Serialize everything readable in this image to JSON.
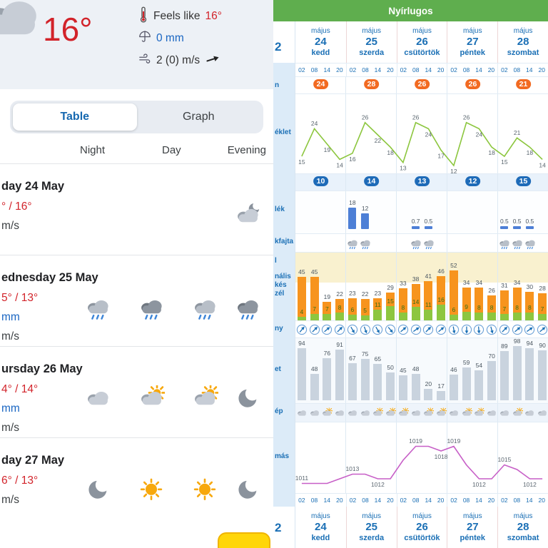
{
  "colors": {
    "header_green": "#5fae4e",
    "accent_blue": "#1a6fb5",
    "temp_red": "#d2232a",
    "precip_blue": "#1a66c2",
    "line_green": "#8cc63e",
    "gust_orange": "#f7941e",
    "avg_green": "#8dc63f",
    "pressure_magenta": "#c75fc7",
    "humidity_gray": "#c9d3de",
    "badge_orange": "#f26a21",
    "badge_blue": "#1e6bb8",
    "highlight_yellow": "#ffd60a"
  },
  "left": {
    "current": {
      "temp": "16°",
      "feels_like_label": "Feels like",
      "feels_like_value": "16°",
      "precip_value": "0 mm",
      "wind_value": "2 (0) m/s"
    },
    "tabs": [
      {
        "label": "Table",
        "active": true
      },
      {
        "label": "Graph",
        "active": false
      }
    ],
    "columns": [
      "Night",
      "Day",
      "Evening"
    ],
    "days": [
      {
        "title": "day 24 May",
        "temp": "° / 16°",
        "precip": "",
        "wind": "m/s",
        "icons": [
          null,
          null,
          null,
          "moon-cloud"
        ]
      },
      {
        "title": "ednesday 25 May",
        "temp": "5° / 13°",
        "precip": "mm",
        "wind": "m/s",
        "icons": [
          "rain",
          "rain-dark",
          "rain",
          "rain-dark"
        ]
      },
      {
        "title": "ursday 26 May",
        "temp": "4° / 14°",
        "precip": "mm",
        "wind": "m/s",
        "icons": [
          "cloud",
          "sun-cloud",
          "sun-cloud",
          "moon"
        ]
      },
      {
        "title": "day 27 May",
        "temp": "6° / 13°",
        "precip": "",
        "wind": "m/s",
        "icons": [
          "moon",
          "sun",
          "sun",
          "moon"
        ]
      }
    ]
  },
  "right": {
    "title": "Nyírlugos",
    "tab_fragment": "2",
    "sidebar_fragments": [
      "2",
      "n",
      "éklet",
      "lék",
      "kfajta",
      "l",
      "nális",
      "kés",
      "zél",
      "ny",
      "et",
      "ép",
      "más",
      "2"
    ],
    "days": [
      {
        "month": "május",
        "num": "24",
        "name": "kedd"
      },
      {
        "month": "május",
        "num": "25",
        "name": "szerda"
      },
      {
        "month": "május",
        "num": "26",
        "name": "csütörtök"
      },
      {
        "month": "május",
        "num": "27",
        "name": "péntek"
      },
      {
        "month": "május",
        "num": "28",
        "name": "szombat"
      }
    ],
    "times": [
      "02",
      "08",
      "14",
      "20"
    ]
  },
  "chart_data": [
    {
      "type": "line",
      "name": "temperature_c",
      "x_slots": "5 days × [02,08,14,20]",
      "values": [
        15,
        24,
        19,
        14,
        16,
        26,
        22,
        18,
        13,
        26,
        24,
        17,
        12,
        26,
        24,
        18,
        15,
        21,
        18,
        14
      ],
      "daily_max_badges": [
        24,
        28,
        26,
        26,
        21
      ],
      "daily_min_badges": [
        10,
        14,
        13,
        12,
        15
      ],
      "line_color": "#8cc63e",
      "ylim": [
        10,
        30
      ]
    },
    {
      "type": "bar",
      "name": "precipitation_mm",
      "values": [
        0,
        0,
        0,
        0,
        18,
        12,
        0,
        0,
        0,
        0.7,
        0.5,
        0,
        0,
        0,
        0,
        0,
        0.5,
        0.5,
        0.5,
        0
      ],
      "bar_color": "#4d7fd6"
    },
    {
      "type": "icons",
      "name": "precipitation_type",
      "slots": [
        {
          "i": 4,
          "icon": "rain"
        },
        {
          "i": 5,
          "icon": "rain"
        },
        {
          "i": 9,
          "icon": "rain"
        },
        {
          "i": 10,
          "icon": "rain"
        },
        {
          "i": 16,
          "icon": "rain"
        },
        {
          "i": 17,
          "icon": "rain"
        },
        {
          "i": 18,
          "icon": "rain"
        }
      ]
    },
    {
      "type": "bar",
      "name": "wind_kmh",
      "series": [
        {
          "name": "gust",
          "color": "#f7941e",
          "values": [
            45,
            45,
            19,
            22,
            23,
            22,
            23,
            29,
            33,
            38,
            41,
            46,
            52,
            34,
            34,
            26,
            31,
            34,
            30,
            28
          ]
        },
        {
          "name": "average",
          "color": "#8dc63f",
          "values": [
            4,
            7,
            7,
            8,
            6,
            5,
            11,
            15,
            8,
            14,
            11,
            16,
            6,
            9,
            8,
            8,
            7,
            8,
            8,
            7
          ]
        }
      ]
    },
    {
      "type": "icons",
      "name": "wind_direction_deg",
      "degrees": [
        40,
        45,
        50,
        45,
        150,
        160,
        150,
        140,
        50,
        55,
        45,
        50,
        170,
        180,
        175,
        165,
        45,
        50,
        55,
        50
      ]
    },
    {
      "type": "bar",
      "name": "relative_humidity_pct",
      "values": [
        94,
        48,
        76,
        91,
        67,
        75,
        65,
        50,
        45,
        48,
        20,
        17,
        46,
        59,
        54,
        70,
        89,
        98,
        94,
        90
      ],
      "bar_color": "#c9d3de"
    },
    {
      "type": "icons",
      "name": "cloud_cover",
      "icons": [
        "cloud",
        "cloud",
        "sun-cloud",
        "cloud",
        "cloud",
        "cloud",
        "sun-cloud",
        "sun-cloud",
        "sun-cloud",
        "cloud",
        "sun-cloud",
        "sun-cloud",
        "cloud",
        "sun-cloud",
        "sun-cloud",
        "cloud",
        "cloud",
        "sun-cloud",
        "cloud",
        "cloud"
      ]
    },
    {
      "type": "line",
      "name": "pressure_hpa",
      "values": [
        1011,
        1011,
        1011,
        1012,
        1013,
        1013,
        1012,
        1012,
        1016,
        1019,
        1019,
        1018,
        1019,
        1015,
        1012,
        1012,
        1015,
        1014,
        1012,
        1012
      ],
      "labeled_indices": [
        0,
        4,
        6,
        9,
        11,
        12,
        14,
        16,
        18
      ],
      "line_color": "#c75fc7"
    }
  ]
}
